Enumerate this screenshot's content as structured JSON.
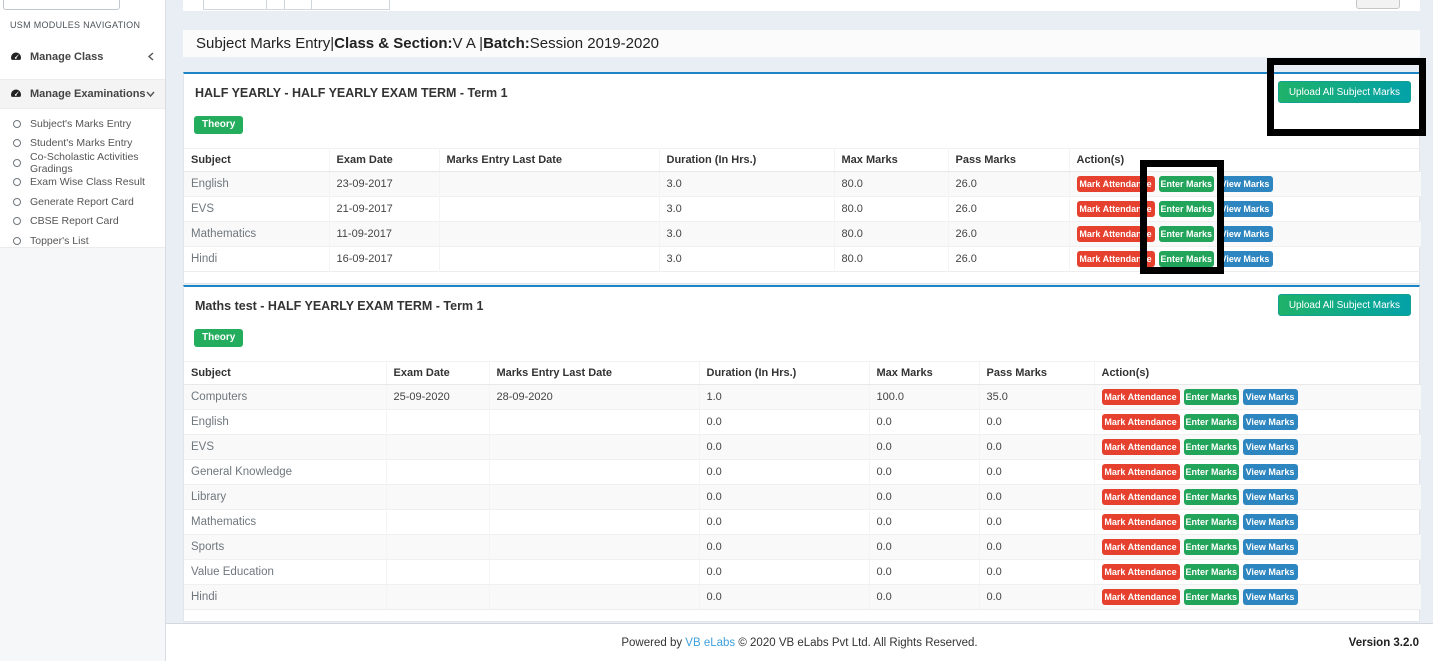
{
  "sidebar": {
    "section_label": "USM MODULES NAVIGATION",
    "menus": [
      {
        "label": "Manage Class",
        "state": "collapsed"
      },
      {
        "label": "Manage Examinations",
        "state": "expanded"
      }
    ],
    "submenu": [
      "Subject's Marks Entry",
      "Student's Marks Entry",
      "Co-Scholastic Activities Gradings",
      "Exam Wise Class Result",
      "Generate Report Card",
      "CBSE Report Card",
      "Topper's List"
    ]
  },
  "header": {
    "segments": [
      {
        "text": "Subject Marks Entry|",
        "bold": false
      },
      {
        "text": "Class & Section:",
        "bold": true
      },
      {
        "text": "V A |",
        "bold": false
      },
      {
        "text": "Batch:",
        "bold": true
      },
      {
        "text": "Session 2019-2020",
        "bold": false
      }
    ]
  },
  "cards": [
    {
      "title": "HALF YEARLY - HALF YEARLY EXAM TERM - Term 1",
      "badge": "Theory",
      "upload_button": "Upload All Subject Marks",
      "columns": [
        "Subject",
        "Exam Date",
        "Marks Entry Last Date",
        "Duration (In Hrs.)",
        "Max Marks",
        "Pass Marks",
        "Action(s)"
      ],
      "actions": [
        "Mark Attendance",
        "Enter Marks",
        "View Marks"
      ],
      "rows": [
        [
          "English",
          "23-09-2017",
          "",
          "3.0",
          "80.0",
          "26.0"
        ],
        [
          "EVS",
          "21-09-2017",
          "",
          "3.0",
          "80.0",
          "26.0"
        ],
        [
          "Mathematics",
          "11-09-2017",
          "",
          "3.0",
          "80.0",
          "26.0"
        ],
        [
          "Hindi",
          "16-09-2017",
          "",
          "3.0",
          "80.0",
          "26.0"
        ]
      ]
    },
    {
      "title": "Maths test - HALF YEARLY EXAM TERM - Term 1",
      "badge": "Theory",
      "upload_button": "Upload All Subject Marks",
      "columns": [
        "Subject",
        "Exam Date",
        "Marks Entry Last Date",
        "Duration (In Hrs.)",
        "Max Marks",
        "Pass Marks",
        "Action(s)"
      ],
      "actions": [
        "Mark Attendance",
        "Enter Marks",
        "View Marks"
      ],
      "rows": [
        [
          "Computers",
          "25-09-2020",
          "28-09-2020",
          "1.0",
          "100.0",
          "35.0"
        ],
        [
          "English",
          "",
          "",
          "0.0",
          "0.0",
          "0.0"
        ],
        [
          "EVS",
          "",
          "",
          "0.0",
          "0.0",
          "0.0"
        ],
        [
          "General Knowledge",
          "",
          "",
          "0.0",
          "0.0",
          "0.0"
        ],
        [
          "Library",
          "",
          "",
          "0.0",
          "0.0",
          "0.0"
        ],
        [
          "Mathematics",
          "",
          "",
          "0.0",
          "0.0",
          "0.0"
        ],
        [
          "Sports",
          "",
          "",
          "0.0",
          "0.0",
          "0.0"
        ],
        [
          "Value Education",
          "",
          "",
          "0.0",
          "0.0",
          "0.0"
        ],
        [
          "Hindi",
          "",
          "",
          "0.0",
          "0.0",
          "0.0"
        ]
      ]
    }
  ],
  "footer": {
    "powered_prefix": "Powered by ",
    "link": "VB eLabs",
    "suffix": " © 2020 VB eLabs Pvt Ltd. All Rights Reserved.",
    "version": "Version 3.2.0"
  },
  "colors": {
    "card_top_border": "#1d84c5",
    "badge_green": "#23ad5c",
    "button_red": "#e6402e",
    "button_green": "#22a45a",
    "button_blue": "#2e86c1",
    "upload_gradient_start": "#1eb26a",
    "upload_gradient_end": "#03a2a8",
    "link_blue": "#3da0dc",
    "page_background": "#e9edf4",
    "annotation_black": "#000000"
  }
}
